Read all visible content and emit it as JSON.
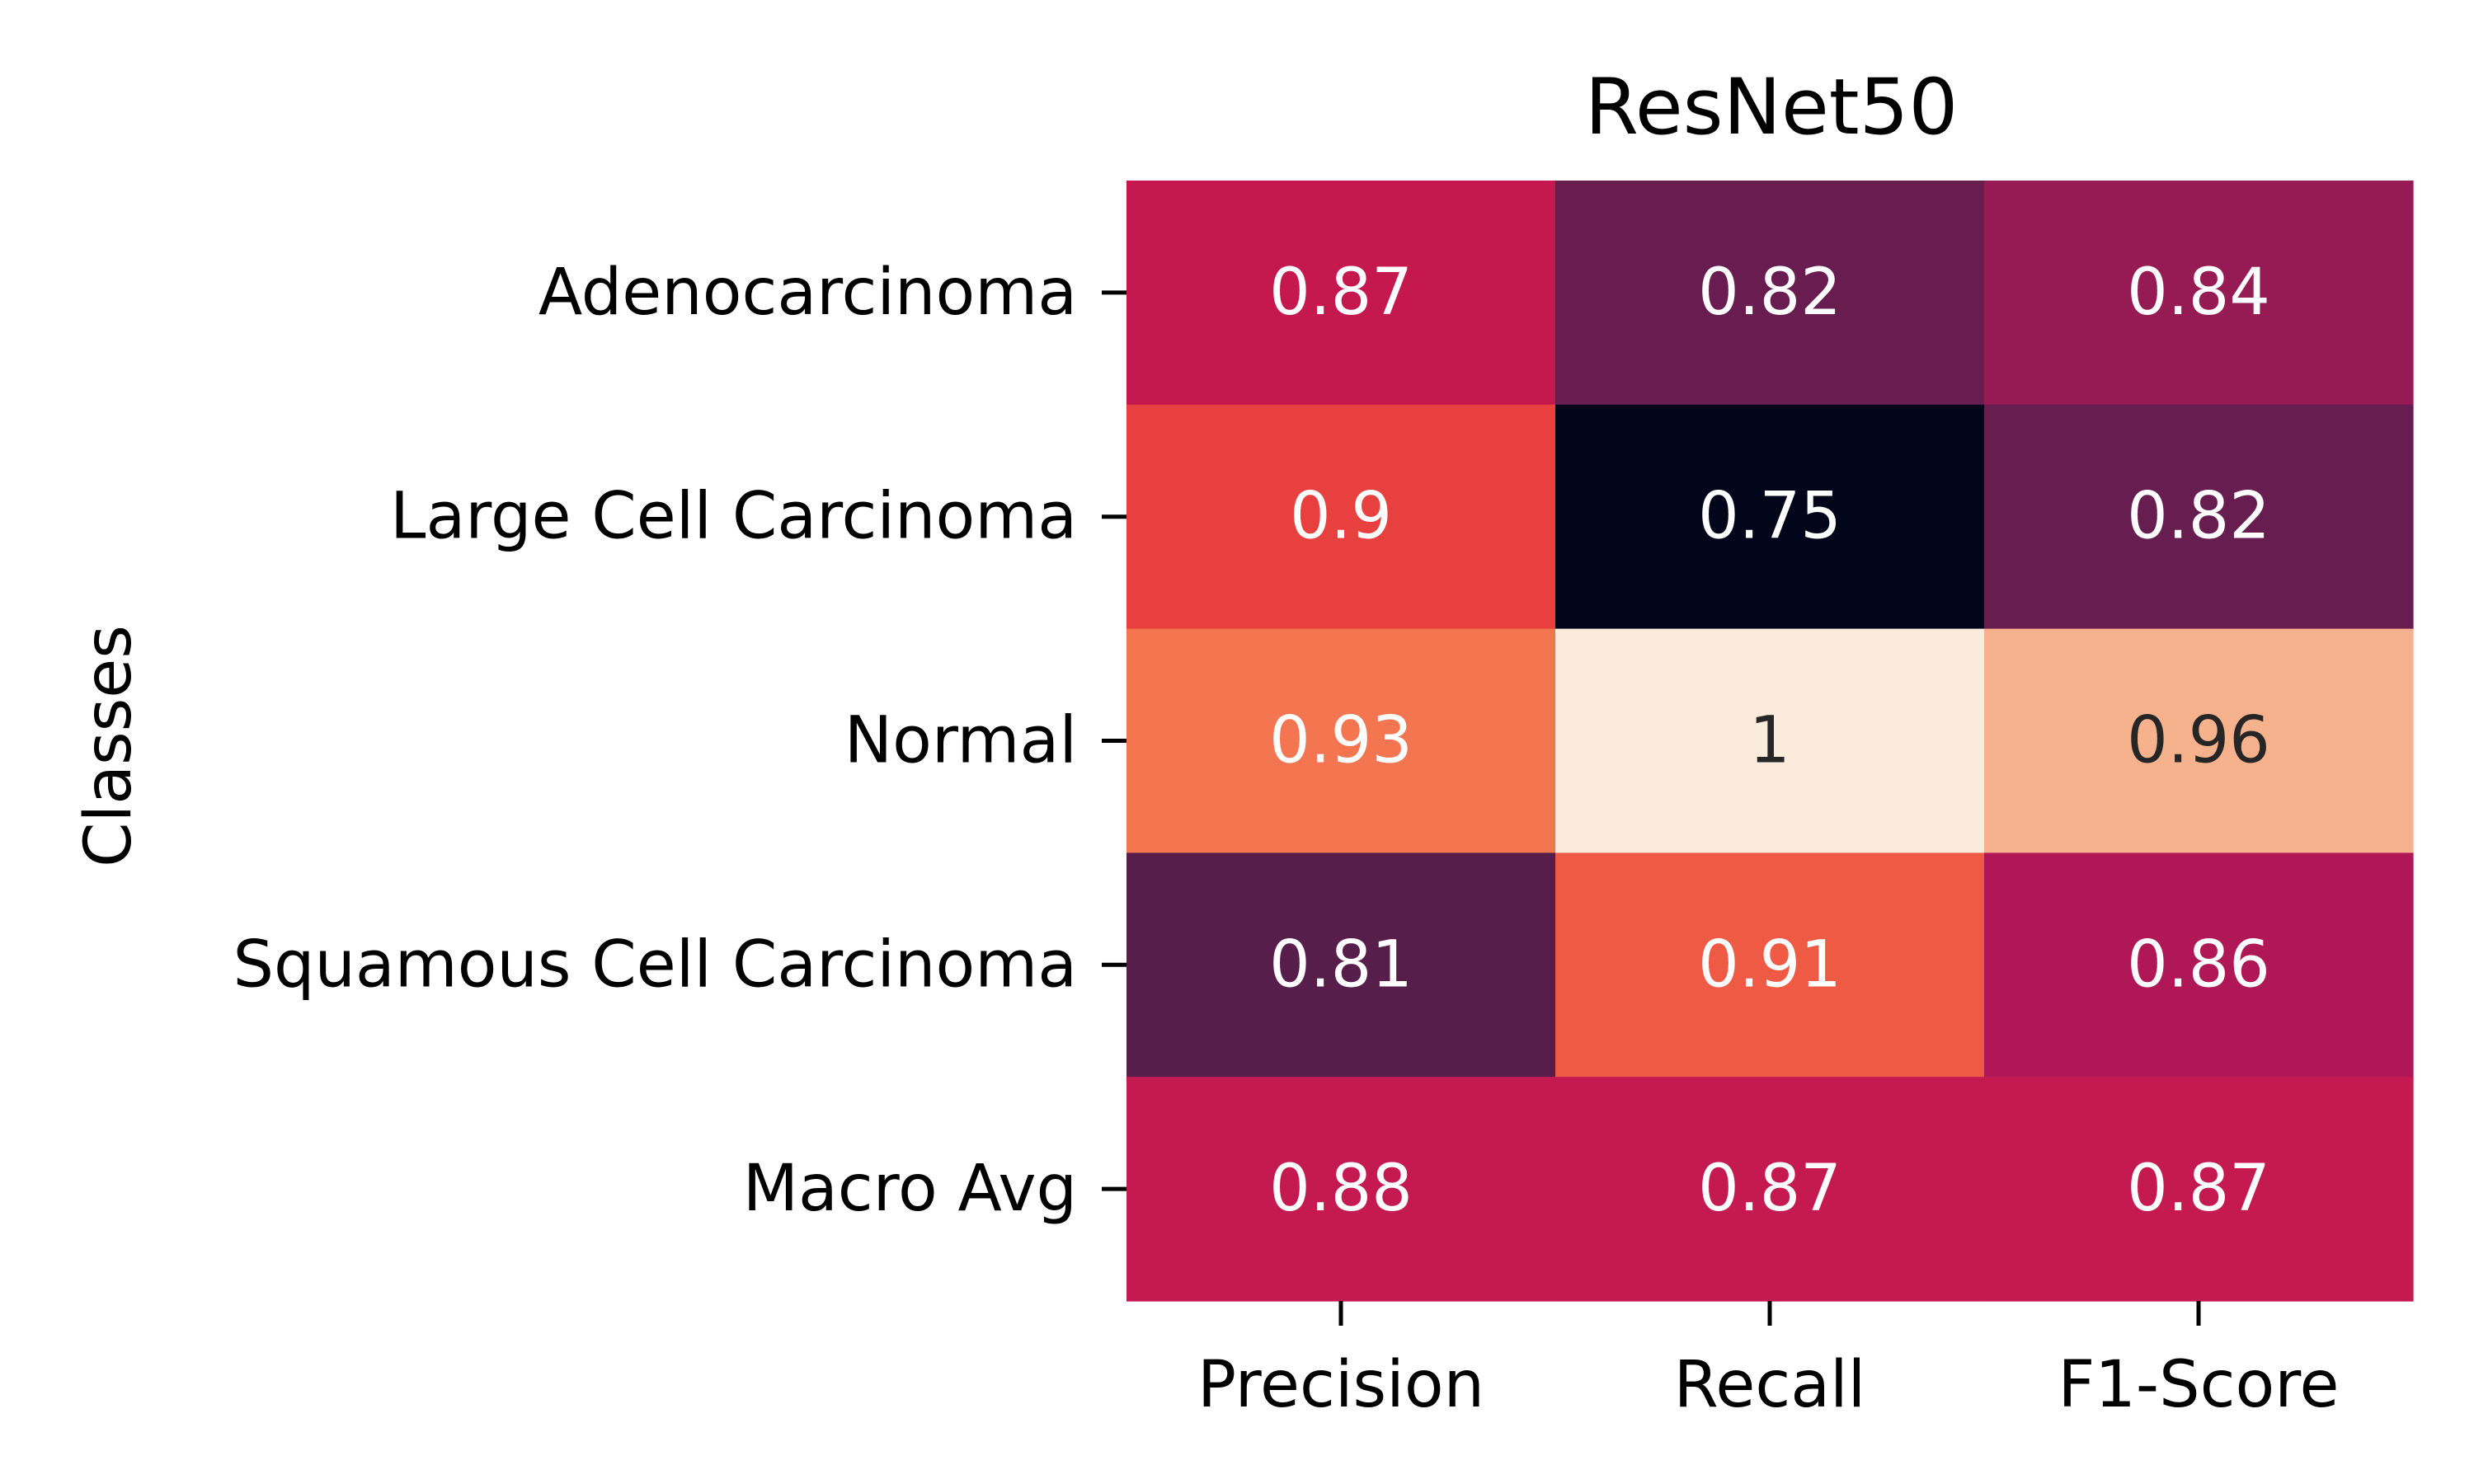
{
  "chart_data": {
    "type": "heatmap",
    "title": "ResNet50",
    "xlabel": "",
    "ylabel": "Classes",
    "columns": [
      "Precision",
      "Recall",
      "F1-Score"
    ],
    "rows": [
      "Adenocarcinoma",
      "Large Cell Carcinoma",
      "Normal",
      "Squamous Cell Carcinoma",
      "Macro Avg"
    ],
    "values": [
      [
        0.87,
        0.82,
        0.84
      ],
      [
        0.9,
        0.75,
        0.82
      ],
      [
        0.93,
        1,
        0.96
      ],
      [
        0.81,
        0.91,
        0.86
      ],
      [
        0.88,
        0.87,
        0.87
      ]
    ],
    "value_labels": [
      [
        "0.87",
        "0.82",
        "0.84"
      ],
      [
        "0.9",
        "0.75",
        "0.82"
      ],
      [
        "0.93",
        "1",
        "0.96"
      ],
      [
        "0.81",
        "0.91",
        "0.86"
      ],
      [
        "0.88",
        "0.87",
        "0.87"
      ]
    ],
    "cell_colors": [
      [
        "#c5184f",
        "#681c50",
        "#961b55"
      ],
      [
        "#e8403f",
        "#03051a",
        "#681d50"
      ],
      [
        "#f37651",
        "#faebdd",
        "#f6b28d"
      ],
      [
        "#571d4b",
        "#ee5a43",
        "#af1756"
      ],
      [
        "#c41951",
        "#c51a51",
        "#c51a51"
      ]
    ],
    "cell_text_colors": [
      [
        "#ffffff",
        "#ffffff",
        "#ffffff"
      ],
      [
        "#ffffff",
        "#ffffff",
        "#ffffff"
      ],
      [
        "#ffffff",
        "#262626",
        "#262626"
      ],
      [
        "#ffffff",
        "#ffffff",
        "#ffffff"
      ],
      [
        "#ffffff",
        "#ffffff",
        "#ffffff"
      ]
    ],
    "colorbar": false,
    "grid": false
  }
}
